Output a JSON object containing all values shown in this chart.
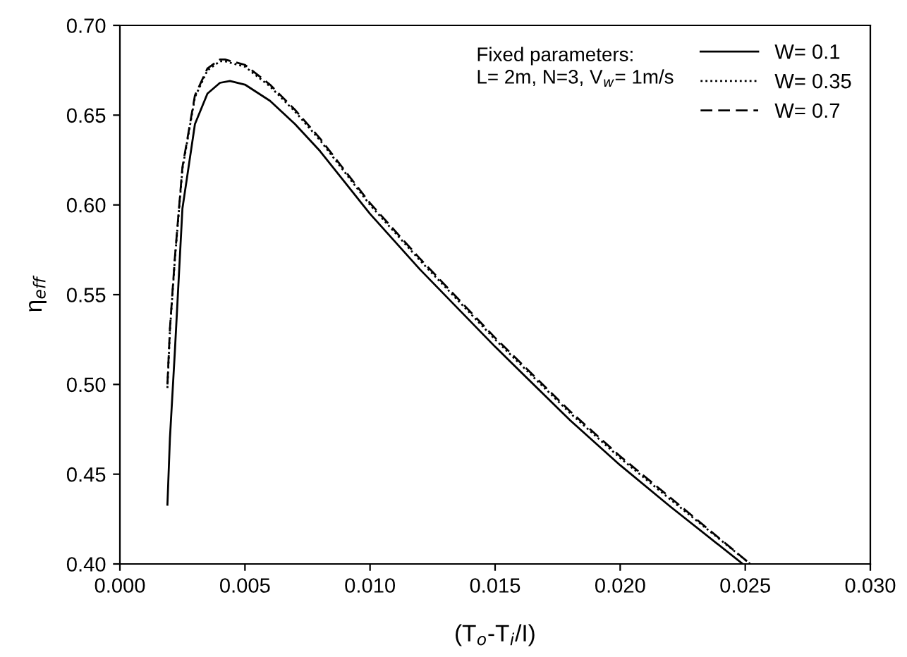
{
  "chart_data": {
    "type": "line",
    "xlabel": "(T$_{o}$-T$_{i}$/I)",
    "ylabel": "η$_{eff}$",
    "xlim": [
      0.0,
      0.03
    ],
    "ylim": [
      0.4,
      0.7
    ],
    "xticks": [
      {
        "value": 0.0,
        "label": "0.000"
      },
      {
        "value": 0.005,
        "label": "0.005"
      },
      {
        "value": 0.01,
        "label": "0.010"
      },
      {
        "value": 0.015,
        "label": "0.015"
      },
      {
        "value": 0.02,
        "label": "0.020"
      },
      {
        "value": 0.025,
        "label": "0.025"
      },
      {
        "value": 0.03,
        "label": "0.030"
      }
    ],
    "yticks": [
      {
        "value": 0.4,
        "label": "0.40"
      },
      {
        "value": 0.45,
        "label": "0.45"
      },
      {
        "value": 0.5,
        "label": "0.50"
      },
      {
        "value": 0.55,
        "label": "0.55"
      },
      {
        "value": 0.6,
        "label": "0.60"
      },
      {
        "value": 0.65,
        "label": "0.65"
      },
      {
        "value": 0.7,
        "label": "0.70"
      }
    ],
    "grid": false,
    "legend": "top right",
    "annotations": [
      "Fixed parameters:\nL= 2m, N=3, V$_{w}$= 1m/s"
    ],
    "series": [
      {
        "name": "W= 0.1",
        "color": "#000000",
        "line_style": "solid",
        "x": [
          0.0019,
          0.002,
          0.0022,
          0.0025,
          0.003,
          0.0035,
          0.004,
          0.0044,
          0.005,
          0.006,
          0.007,
          0.008,
          0.01,
          0.012,
          0.015,
          0.018,
          0.02,
          0.022,
          0.0249
        ],
        "values": [
          0.433,
          0.47,
          0.519,
          0.598,
          0.645,
          0.662,
          0.668,
          0.669,
          0.667,
          0.658,
          0.645,
          0.63,
          0.595,
          0.564,
          0.521,
          0.48,
          0.455,
          0.432,
          0.4
        ]
      },
      {
        "name": "W= 0.35",
        "color": "#000000",
        "line_style": "dotted",
        "x": [
          0.0019,
          0.002,
          0.0022,
          0.0025,
          0.003,
          0.0035,
          0.004,
          0.0042,
          0.005,
          0.006,
          0.007,
          0.008,
          0.01,
          0.012,
          0.015,
          0.018,
          0.02,
          0.022,
          0.0252
        ],
        "values": [
          0.498,
          0.53,
          0.57,
          0.62,
          0.66,
          0.675,
          0.68,
          0.68,
          0.677,
          0.666,
          0.652,
          0.636,
          0.6,
          0.569,
          0.525,
          0.484,
          0.459,
          0.436,
          0.4
        ]
      },
      {
        "name": "W= 0.7",
        "color": "#000000",
        "line_style": "dashed",
        "x": [
          0.0019,
          0.002,
          0.0022,
          0.0025,
          0.003,
          0.0035,
          0.004,
          0.0042,
          0.005,
          0.006,
          0.007,
          0.008,
          0.01,
          0.012,
          0.015,
          0.018,
          0.02,
          0.022,
          0.0252
        ],
        "values": [
          0.5,
          0.531,
          0.571,
          0.621,
          0.661,
          0.676,
          0.681,
          0.681,
          0.678,
          0.667,
          0.653,
          0.637,
          0.601,
          0.57,
          0.526,
          0.485,
          0.46,
          0.437,
          0.4
        ]
      }
    ]
  }
}
